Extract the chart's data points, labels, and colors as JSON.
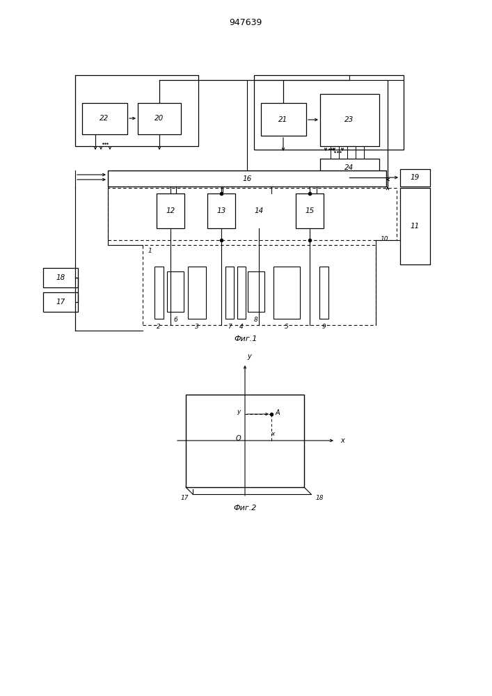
{
  "title": "947639",
  "fig1_caption": "Фиг.1",
  "fig2_caption": "Фиг.2",
  "bg_color": "#ffffff",
  "line_color": "#000000"
}
